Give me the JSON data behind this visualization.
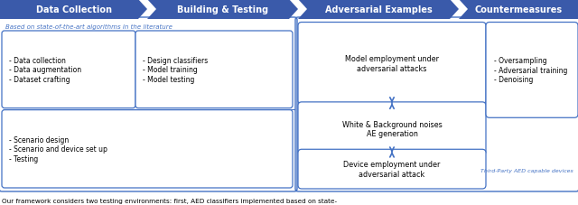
{
  "fig_width": 6.4,
  "fig_height": 2.28,
  "dpi": 100,
  "bg_color": "#ffffff",
  "header_bg": "#3a5aaa",
  "header_text_color": "#ffffff",
  "border_color": "#4472c4",
  "label_color": "#4472c4",
  "text_color": "#000000",
  "small_text_color": "#4472c4",
  "header_labels": [
    "Data Collection",
    "Building & Testing",
    "Adversarial Examples",
    "Countermeasures"
  ],
  "note_top": "Based on state-of-the-art algorithms in the literature",
  "note_bottom": "Third-Party AED capable devices",
  "caption": "Our framework considers two testing environments: first, AED classifiers implemented based on state-"
}
